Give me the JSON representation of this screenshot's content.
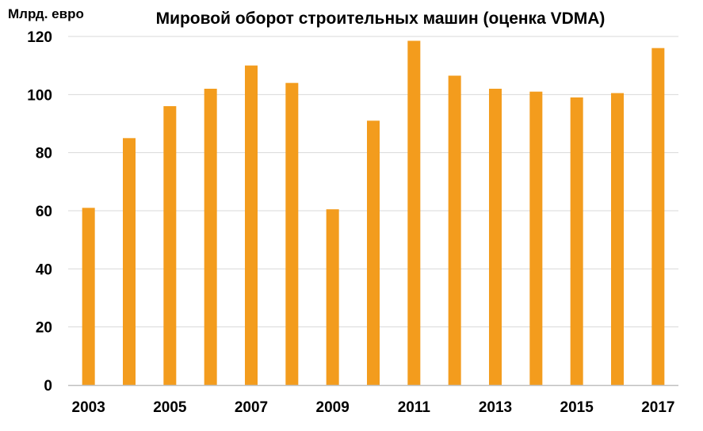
{
  "chart_data": {
    "type": "bar",
    "title": "Мировой оборот строительных машин (оценка VDMA)",
    "ylabel": "Млрд. евро",
    "xlabel": "",
    "categories": [
      "2003",
      "2004",
      "2005",
      "2006",
      "2007",
      "2008",
      "2009",
      "2010",
      "2011",
      "2012",
      "2013",
      "2014",
      "2015",
      "2016",
      "2017"
    ],
    "x_tick_labels": [
      "2003",
      "2005",
      "2007",
      "2009",
      "2011",
      "2013",
      "2015",
      "2017"
    ],
    "values": [
      61,
      85,
      96,
      102,
      110,
      104,
      60.5,
      91,
      118.5,
      106.5,
      102,
      101,
      99,
      100.5,
      116
    ],
    "ylim": [
      0,
      120
    ],
    "y_ticks": [
      0,
      20,
      40,
      60,
      80,
      100,
      120
    ],
    "grid": true,
    "legend": "none",
    "colors": {
      "bar": "#F39C1D",
      "grid": "#D9D9D9",
      "axis": "#BFBFBF"
    }
  }
}
